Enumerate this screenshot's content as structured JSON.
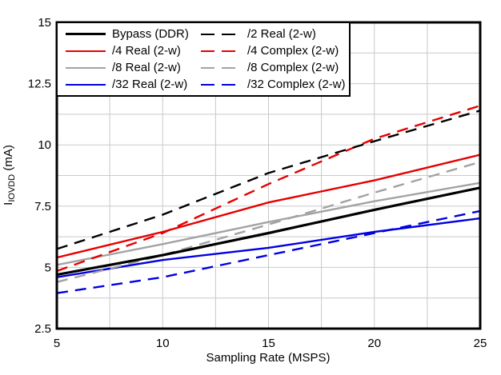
{
  "chart_data": {
    "type": "line",
    "title": "",
    "xlabel": "Sampling Rate (MSPS)",
    "ylabel": {
      "base": "I",
      "subscript": "IOVDD",
      "unit": " (mA)"
    },
    "xlim": [
      5,
      25
    ],
    "ylim": [
      2.5,
      15
    ],
    "x_tick_labels": [
      "5",
      "10",
      "15",
      "20",
      "25"
    ],
    "y_tick_labels": [
      "2.5",
      "5",
      "7.5",
      "10",
      "12.5",
      "15"
    ],
    "x_grid_step": 2.5,
    "y_grid_step": 1.25,
    "grid_on": true,
    "grid_color": "#c9c9c9",
    "axis_color": "#000000",
    "legend_position": "top-left",
    "x": [
      5,
      10,
      15,
      20,
      25
    ],
    "series": [
      {
        "name": "Bypass (DDR)",
        "color": "#000000",
        "dash": "solid",
        "width": 3.2,
        "values": [
          4.7,
          5.5,
          6.4,
          7.35,
          8.25
        ]
      },
      {
        "name": "/2 Real (2-w)",
        "color": "#000000",
        "dash": "dashed",
        "width": 2.4,
        "values": [
          5.75,
          7.15,
          8.85,
          10.15,
          11.4
        ]
      },
      {
        "name": "/4 Real (2-w)",
        "color": "#e60000",
        "dash": "solid",
        "width": 2.4,
        "values": [
          5.4,
          6.45,
          7.65,
          8.55,
          9.6
        ]
      },
      {
        "name": "/4 Complex (2-w)",
        "color": "#e60000",
        "dash": "dashed",
        "width": 2.4,
        "values": [
          4.85,
          6.4,
          8.4,
          10.25,
          11.6
        ]
      },
      {
        "name": "/8 Real (2-w)",
        "color": "#a3a3a3",
        "dash": "solid",
        "width": 2.4,
        "values": [
          5.1,
          5.95,
          6.85,
          7.7,
          8.45
        ]
      },
      {
        "name": "/8 Complex (2-w)",
        "color": "#a3a3a3",
        "dash": "dashed",
        "width": 2.4,
        "values": [
          4.4,
          5.5,
          6.75,
          8.05,
          9.3
        ]
      },
      {
        "name": "/32 Real (2-w)",
        "color": "#0000e0",
        "dash": "solid",
        "width": 2.4,
        "values": [
          4.6,
          5.3,
          5.8,
          6.45,
          7.0
        ]
      },
      {
        "name": "/32 Complex (2-w)",
        "color": "#0000e0",
        "dash": "dashed",
        "width": 2.4,
        "values": [
          3.95,
          4.6,
          5.5,
          6.4,
          7.3
        ]
      }
    ]
  }
}
